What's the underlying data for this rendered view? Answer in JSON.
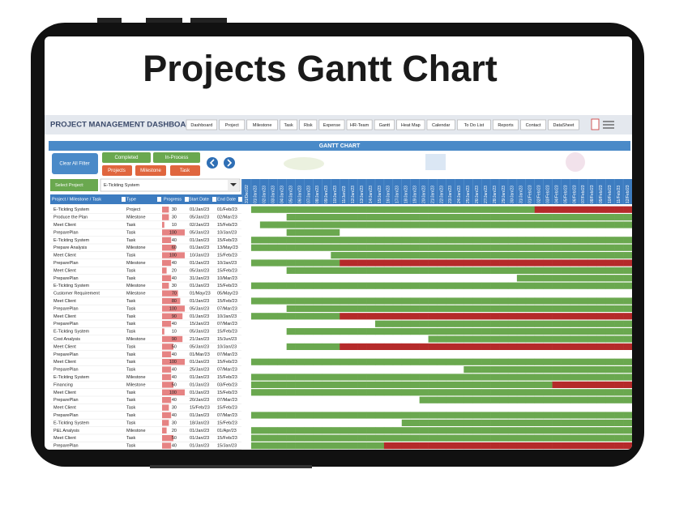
{
  "title": "Projects Gantt Chart",
  "dashboard": {
    "title": "PROJECT MANAGEMENT DASHBOARD",
    "nav": [
      "Dashboard",
      "Project",
      "Milestone",
      "Task",
      "Risk",
      "Expense",
      "HR-Team",
      "Gantt",
      "Heat Map",
      "Calendar",
      "To Do List",
      "Reports",
      "Contact",
      "DataSheet"
    ],
    "section": "GANTT CHART",
    "filters": {
      "clear": "Clear All Filter",
      "completed": "Completed",
      "in_process": "In-Process",
      "projects": "Projects",
      "milestone": "Milestone",
      "task": "Task"
    },
    "select_label": "Select Project:",
    "select_value": "E-Tickting System",
    "columns": [
      "Project / Milestone / Task",
      "Type",
      "Progress",
      "Start Date",
      "End Date"
    ],
    "timeline": [
      "31/Dec/22",
      "01/Jan/23",
      "02/Jan/23",
      "03/Jan/23",
      "04/Jan/23",
      "05/Jan/23",
      "06/Jan/23",
      "07/Jan/23",
      "08/Jan/23",
      "09/Jan/23",
      "10/Jan/23",
      "11/Jan/23",
      "12/Jan/23",
      "13/Jan/23",
      "14/Jan/23",
      "15/Jan/23",
      "16/Jan/23",
      "17/Jan/23",
      "18/Jan/23",
      "19/Jan/23",
      "20/Jan/23",
      "21/Jan/23",
      "22/Jan/23",
      "23/Jan/23",
      "24/Jan/23",
      "25/Jan/23",
      "26/Jan/23",
      "27/Jan/23",
      "28/Jan/23",
      "29/Jan/23",
      "30/Jan/23",
      "31/Jan/23",
      "01/Feb/23",
      "02/Feb/23",
      "03/Feb/23",
      "04/Feb/23",
      "05/Feb/23",
      "06/Feb/23",
      "07/Feb/23",
      "08/Feb/23",
      "09/Feb/23",
      "10/Feb/23",
      "11/Feb/23",
      "12/Feb/23"
    ],
    "rows": [
      [
        "E-Tickting System",
        "Project",
        30,
        "01/Jan/23",
        "01/Feb/23"
      ],
      [
        "Produce the Plan",
        "Milestone",
        30,
        "05/Jan/23",
        "02/Mar/23"
      ],
      [
        "Meet Client",
        "Task",
        10,
        "02/Jan/23",
        "15/Feb/23"
      ],
      [
        "PreparePlan",
        "Task",
        100,
        "05/Jan/23",
        "10/Jan/23"
      ],
      [
        "E-Tickting System",
        "Task",
        40,
        "01/Jan/23",
        "15/Feb/23"
      ],
      [
        "Prepare Analysis",
        "Milestone",
        60,
        "01/Jan/23",
        "13/May/23"
      ],
      [
        "Meet Client",
        "Task",
        100,
        "10/Jan/23",
        "15/Feb/23"
      ],
      [
        "PreparePlan",
        "Milestone",
        40,
        "01/Jan/23",
        "10/Jan/23"
      ],
      [
        "Meet Client",
        "Task",
        20,
        "05/Jan/23",
        "15/Feb/23"
      ],
      [
        "PreparePlan",
        "Task",
        40,
        "31/Jan/23",
        "10/Mar/23"
      ],
      [
        "E-Tickting System",
        "Milestone",
        30,
        "01/Jan/23",
        "15/Feb/23"
      ],
      [
        "Customer Requirement",
        "Milestone",
        70,
        "01/May/23",
        "05/May/23"
      ],
      [
        "Meet Client",
        "Task",
        80,
        "01/Jan/23",
        "15/Feb/23"
      ],
      [
        "PreparePlan",
        "Task",
        100,
        "05/Jan/23",
        "07/Mar/23"
      ],
      [
        "Meet Client",
        "Task",
        90,
        "01/Jan/23",
        "10/Jan/23"
      ],
      [
        "PreparePlan",
        "Task",
        40,
        "15/Jan/23",
        "07/Mar/23"
      ],
      [
        "E-Tickting System",
        "Task",
        10,
        "05/Jan/23",
        "15/Feb/23"
      ],
      [
        "Cost Analysis",
        "Milestone",
        90,
        "21/Jan/23",
        "15/Jun/23"
      ],
      [
        "Meet Client",
        "Task",
        50,
        "05/Jan/23",
        "10/Jan/23"
      ],
      [
        "PreparePlan",
        "Task",
        40,
        "01/Mar/23",
        "07/Mar/23"
      ],
      [
        "Meet Client",
        "Task",
        100,
        "01/Jan/23",
        "15/Feb/23"
      ],
      [
        "PreparePlan",
        "Task",
        40,
        "25/Jan/23",
        "07/Mar/23"
      ],
      [
        "E-Tickting System",
        "Milestone",
        40,
        "01/Jan/23",
        "15/Feb/23"
      ],
      [
        "Financing",
        "Milestone",
        50,
        "01/Jan/23",
        "03/Feb/23"
      ],
      [
        "Meet Client",
        "Task",
        100,
        "01/Jan/23",
        "15/Feb/23"
      ],
      [
        "PreparePlan",
        "Task",
        40,
        "20/Jan/23",
        "07/Mar/23"
      ],
      [
        "Meet Client",
        "Task",
        30,
        "15/Feb/23",
        "15/Feb/23"
      ],
      [
        "PreparePlan",
        "Task",
        40,
        "01/Jan/23",
        "07/Mar/23"
      ],
      [
        "E-Tickting System",
        "Task",
        30,
        "18/Jan/23",
        "15/Feb/23"
      ],
      [
        "P&L Analysis",
        "Milestone",
        20,
        "01/Jan/23",
        "01/Apr/23"
      ],
      [
        "Meet Client",
        "Task",
        50,
        "01/Jan/23",
        "15/Feb/23"
      ],
      [
        "PreparePlan",
        "Task",
        40,
        "01/Jan/23",
        "15/Jan/23"
      ]
    ]
  }
}
